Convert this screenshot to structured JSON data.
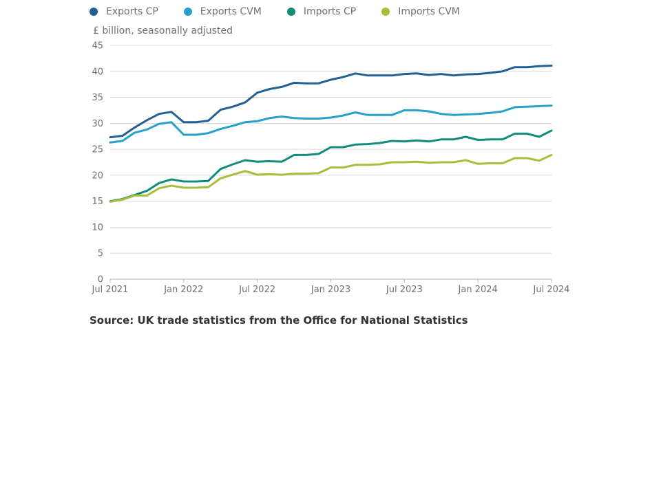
{
  "chart_data": {
    "type": "line",
    "ylabel": "£ billion, seasonally adjusted",
    "xlabel": "",
    "ylim": [
      0,
      45
    ],
    "yticks": [
      0,
      5,
      10,
      15,
      20,
      25,
      30,
      35,
      40,
      45
    ],
    "xticks": [
      {
        "label": "Jul 2021",
        "index": 0
      },
      {
        "label": "Jan 2022",
        "index": 6
      },
      {
        "label": "Jul 2022",
        "index": 12
      },
      {
        "label": "Jan 2023",
        "index": 18
      },
      {
        "label": "Jul 2023",
        "index": 24
      },
      {
        "label": "Jan 2024",
        "index": 30
      },
      {
        "label": "Jul 2024",
        "index": 36
      }
    ],
    "x": [
      "Jul 2021",
      "Aug 2021",
      "Sep 2021",
      "Oct 2021",
      "Nov 2021",
      "Dec 2021",
      "Jan 2022",
      "Feb 2022",
      "Mar 2022",
      "Apr 2022",
      "May 2022",
      "Jun 2022",
      "Jul 2022",
      "Aug 2022",
      "Sep 2022",
      "Oct 2022",
      "Nov 2022",
      "Dec 2022",
      "Jan 2023",
      "Feb 2023",
      "Mar 2023",
      "Apr 2023",
      "May 2023",
      "Jun 2023",
      "Jul 2023",
      "Aug 2023",
      "Sep 2023",
      "Oct 2023",
      "Nov 2023",
      "Dec 2023",
      "Jan 2024",
      "Feb 2024",
      "Mar 2024",
      "Apr 2024",
      "May 2024",
      "Jun 2024",
      "Jul 2024"
    ],
    "grid": true,
    "legend_position": "top",
    "series": [
      {
        "name": "Exports CP",
        "color": "#206095",
        "values": [
          27.3,
          27.6,
          29.2,
          30.6,
          31.8,
          32.2,
          30.2,
          30.2,
          30.5,
          32.6,
          33.2,
          34.0,
          35.9,
          36.6,
          37.0,
          37.8,
          37.7,
          37.7,
          38.4,
          38.9,
          39.6,
          39.2,
          39.2,
          39.2,
          39.5,
          39.6,
          39.3,
          39.5,
          39.2,
          39.4,
          39.5,
          39.7,
          40.0,
          40.8,
          40.8,
          41.0,
          41.1
        ]
      },
      {
        "name": "Exports CVM",
        "color": "#27a0cc",
        "values": [
          26.3,
          26.6,
          28.2,
          28.8,
          29.9,
          30.2,
          27.8,
          27.8,
          28.1,
          28.9,
          29.5,
          30.2,
          30.4,
          31.0,
          31.3,
          31.0,
          30.9,
          30.9,
          31.1,
          31.5,
          32.1,
          31.6,
          31.6,
          31.6,
          32.5,
          32.5,
          32.3,
          31.8,
          31.6,
          31.7,
          31.8,
          32.0,
          32.3,
          33.1,
          33.2,
          33.3,
          33.4
        ]
      },
      {
        "name": "Imports CP",
        "color": "#118c7b",
        "values": [
          15.0,
          15.4,
          16.2,
          17.0,
          18.5,
          19.2,
          18.8,
          18.8,
          18.9,
          21.2,
          22.1,
          22.9,
          22.6,
          22.7,
          22.6,
          23.9,
          23.9,
          24.1,
          25.4,
          25.4,
          25.9,
          26.0,
          26.2,
          26.6,
          26.5,
          26.7,
          26.5,
          26.9,
          26.9,
          27.4,
          26.8,
          26.9,
          26.9,
          28.0,
          28.0,
          27.4,
          28.6
        ]
      },
      {
        "name": "Imports CVM",
        "color": "#a8bd3a",
        "values": [
          14.9,
          15.3,
          16.1,
          16.1,
          17.5,
          18.0,
          17.6,
          17.6,
          17.7,
          19.4,
          20.1,
          20.8,
          20.1,
          20.2,
          20.1,
          20.3,
          20.3,
          20.4,
          21.5,
          21.5,
          22.0,
          22.0,
          22.1,
          22.5,
          22.5,
          22.6,
          22.4,
          22.5,
          22.5,
          22.9,
          22.2,
          22.3,
          22.3,
          23.3,
          23.3,
          22.8,
          23.9
        ]
      }
    ]
  },
  "source": "Source: UK trade statistics from the Office for National Statistics"
}
